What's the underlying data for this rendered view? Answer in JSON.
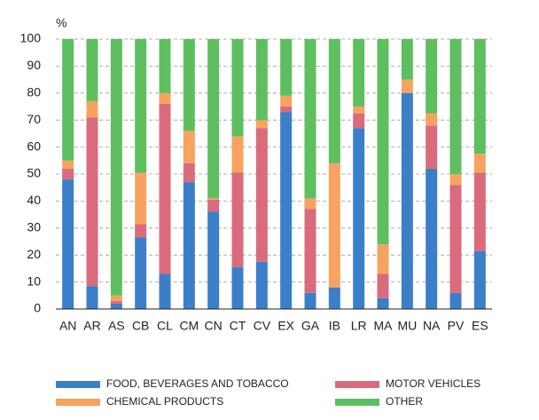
{
  "chart_data": {
    "type": "stacked_bar",
    "y_unit_label": "%",
    "categories": [
      "AN",
      "AR",
      "AS",
      "CB",
      "CL",
      "CM",
      "CN",
      "CT",
      "CV",
      "EX",
      "GA",
      "IB",
      "LR",
      "MA",
      "MU",
      "NA",
      "PV",
      "ES"
    ],
    "series": [
      {
        "name": "FOOD, BEVERAGES AND TOBACCO",
        "color": "#3b7fca",
        "values": [
          48,
          8.5,
          2,
          26.5,
          13,
          47,
          36,
          15.5,
          17.5,
          73,
          6,
          8,
          67,
          4,
          80,
          52,
          6,
          21.5
        ]
      },
      {
        "name": "MOTOR VEHICLES",
        "color": "#d96b7c",
        "values": [
          4,
          62.5,
          1,
          5,
          63,
          7,
          4.5,
          35,
          49.5,
          2,
          31,
          0,
          5.5,
          9,
          0,
          16,
          40,
          29
        ]
      },
      {
        "name": "CHEMICAL PRODUCTS",
        "color": "#f7a35f",
        "values": [
          3,
          6,
          2,
          19,
          4,
          12,
          0.5,
          13.5,
          3,
          4,
          4,
          46,
          2.5,
          11,
          5,
          4.5,
          4,
          7
        ]
      },
      {
        "name": "OTHER",
        "color": "#5dbf5f",
        "values": [
          45,
          23,
          95,
          49.5,
          20,
          34,
          59,
          36,
          30,
          21,
          59,
          46,
          25,
          76,
          15,
          27.5,
          50,
          42.5
        ]
      }
    ],
    "ylim": [
      0,
      100
    ],
    "yticks": [
      0,
      10,
      20,
      30,
      40,
      50,
      60,
      70,
      80,
      90,
      100
    ],
    "grid": true
  }
}
